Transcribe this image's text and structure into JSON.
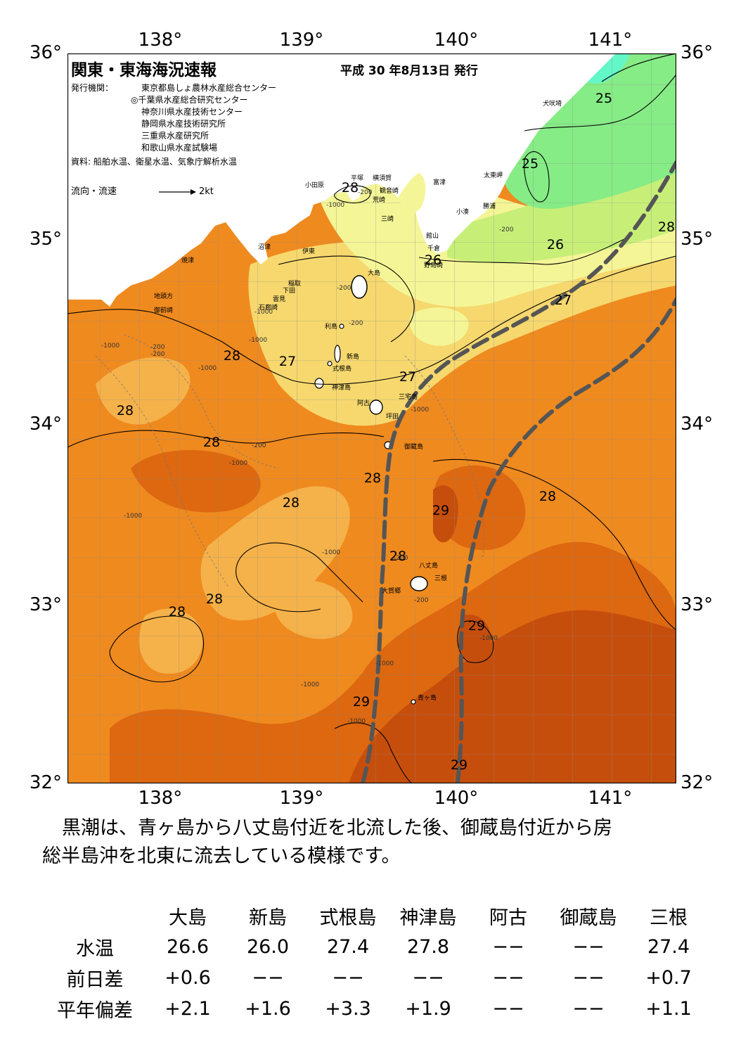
{
  "header": {
    "title": "関東・東海海況速報",
    "date": "平成 30 年8月13日 発行",
    "issuers_label": "発行機関：",
    "issuers": [
      "東京都島しょ農林水産総合センター",
      "◎千葉県水産総合研究センター",
      "神奈川県水産技術センター",
      "静岡県水産技術研究所",
      "三重県水産研究所",
      "和歌山県水産試験場"
    ],
    "sources": "資料: 船舶水温、衛星水温、気象庁解析水温",
    "flow_legend_label": "流向・流速",
    "flow_legend_value": "2kt"
  },
  "axes": {
    "lon_labels": [
      "138°",
      "139°",
      "140°",
      "141°"
    ],
    "lat_labels": [
      "36°",
      "35°",
      "34°",
      "33°",
      "32°"
    ]
  },
  "colors": {
    "t24": "#63f7c8",
    "t25": "#86ec86",
    "t26": "#c7ef78",
    "t26_5": "#f4f596",
    "t27": "#f6d86e",
    "t27_5": "#f5b24a",
    "t28": "#ef8a1f",
    "t28_5": "#dd6810",
    "t29": "#c64e0c",
    "land": "#ffffff",
    "kuroshio": "#555555"
  },
  "temp_labels": [
    "28",
    "25",
    "25",
    "28",
    "26",
    "27",
    "28",
    "27",
    "27",
    "28",
    "28",
    "28",
    "28",
    "28",
    "29",
    "28",
    "28",
    "28",
    "29",
    "29",
    "29",
    "26"
  ],
  "place_names": [
    "平塚",
    "横須賀",
    "観音崎",
    "小田原",
    "荒崎",
    "三崎",
    "富津",
    "犬吠埼",
    "太東岬",
    "勝浦",
    "小湊",
    "館山",
    "千倉",
    "野島崎",
    "沼津",
    "伊東",
    "焼津",
    "稲取",
    "下田",
    "雲見",
    "石廊崎",
    "地頭方",
    "御前崎",
    "大島",
    "利島",
    "新島",
    "式根島",
    "神津島",
    "三宅島",
    "阿古",
    "坪田",
    "御蔵島",
    "八丈島",
    "三根",
    "大賀郷",
    "青ヶ島"
  ],
  "depth_labels": [
    "-1000",
    "-200",
    "-1000",
    "-200",
    "-200",
    "-1000",
    "-1000",
    "-200",
    "-1000",
    "-200",
    "-200",
    "-1000",
    "-1000",
    "-1000",
    "-1000",
    "-200",
    "-200",
    "-1000",
    "-1000",
    "-1000",
    "-200",
    "-1000"
  ],
  "summary": [
    "黒潮は、青ヶ島から八丈島付近を北流した後、御蔵島付近から房",
    "総半島沖を北東に流去している模様です。"
  ],
  "table": {
    "columns": [
      "大島",
      "新島",
      "式根島",
      "神津島",
      "阿古",
      "御蔵島",
      "三根"
    ],
    "rows": [
      {
        "label": "水温",
        "values": [
          "26.6",
          "26.0",
          "27.4",
          "27.8",
          "−−",
          "−−",
          "27.4"
        ]
      },
      {
        "label": "前日差",
        "values": [
          "+0.6",
          "−−",
          "−−",
          "−−",
          "−−",
          "−−",
          "+0.7"
        ]
      },
      {
        "label": "平年偏差",
        "values": [
          "+2.1",
          "+1.6",
          "+3.3",
          "+1.9",
          "−−",
          "−−",
          "+1.1"
        ]
      }
    ]
  }
}
